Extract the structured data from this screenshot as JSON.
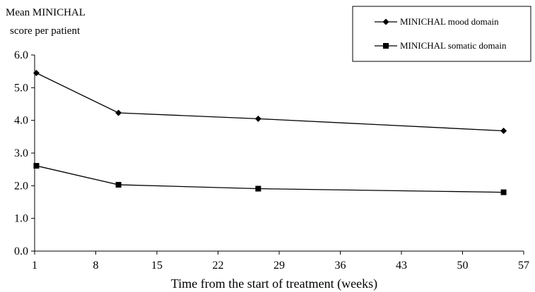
{
  "chart_data": {
    "type": "line",
    "ylabel_lines": [
      "Mean MINICHAL",
      "score per patient"
    ],
    "xlabel": "Time from the start of treatment (weeks)",
    "xlim": [
      1,
      57
    ],
    "ylim": [
      0,
      6
    ],
    "x_ticks": [
      "1",
      "8",
      "15",
      "22",
      "29",
      "36",
      "43",
      "50",
      "57"
    ],
    "y_ticks": [
      "0.0",
      "1.0",
      "2.0",
      "3.0",
      "4.0",
      "5.0",
      "6.0"
    ],
    "grid": false,
    "legend_position": "top-right",
    "series": [
      {
        "name": "MINICHAL mood domain",
        "marker": "diamond",
        "x": [
          1.2,
          10.6,
          26.6,
          54.7
        ],
        "values": [
          5.45,
          4.23,
          4.05,
          3.68
        ]
      },
      {
        "name": "MINICHAL somatic domain",
        "marker": "square",
        "x": [
          1.2,
          10.6,
          26.6,
          54.7
        ],
        "values": [
          2.61,
          2.03,
          1.91,
          1.8
        ]
      }
    ]
  }
}
